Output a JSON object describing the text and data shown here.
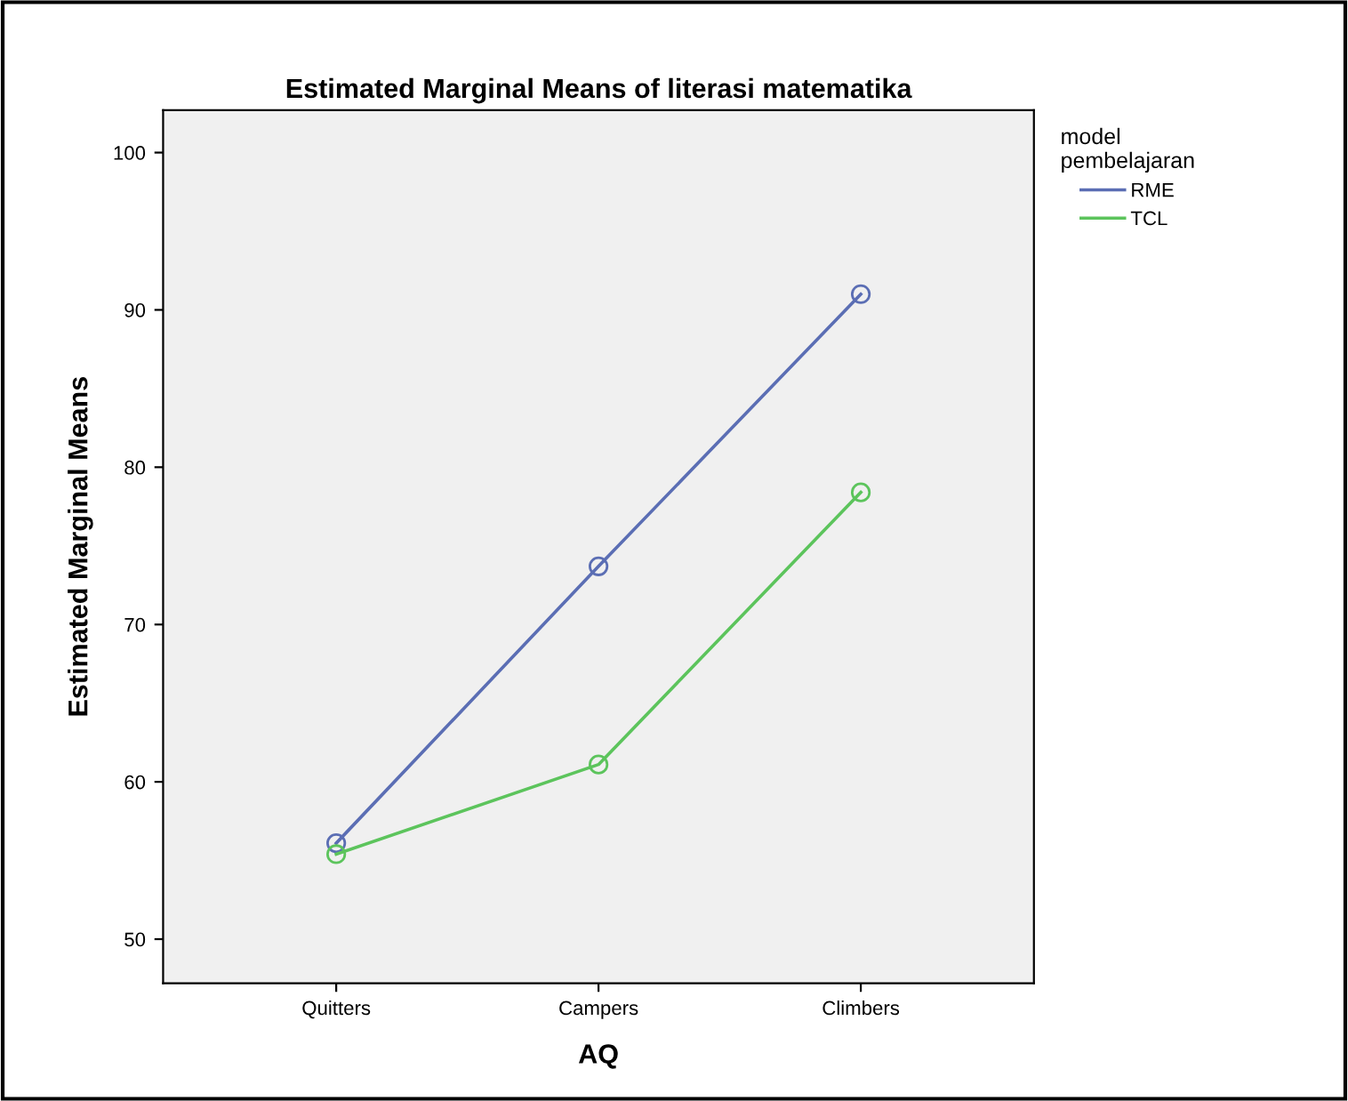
{
  "chart_data": {
    "type": "line",
    "title": "Estimated Marginal Means of literasi matematika",
    "xlabel": "AQ",
    "ylabel": "Estimated Marginal Means",
    "legend_title": "model\npembelajaran",
    "categories": [
      "Quitters",
      "Campers",
      "Climbers"
    ],
    "series": [
      {
        "name": "RME",
        "color": "#5b6eb4",
        "values": [
          56.1,
          73.7,
          91.0
        ]
      },
      {
        "name": "TCL",
        "color": "#5cc45c",
        "values": [
          55.4,
          61.1,
          78.4
        ]
      }
    ],
    "ylim": [
      47.2,
      102.7
    ],
    "yticks": [
      50,
      60,
      70,
      80,
      90,
      100
    ],
    "marker": "circle",
    "line_style": "solid",
    "grid": false,
    "legend": "top right"
  }
}
